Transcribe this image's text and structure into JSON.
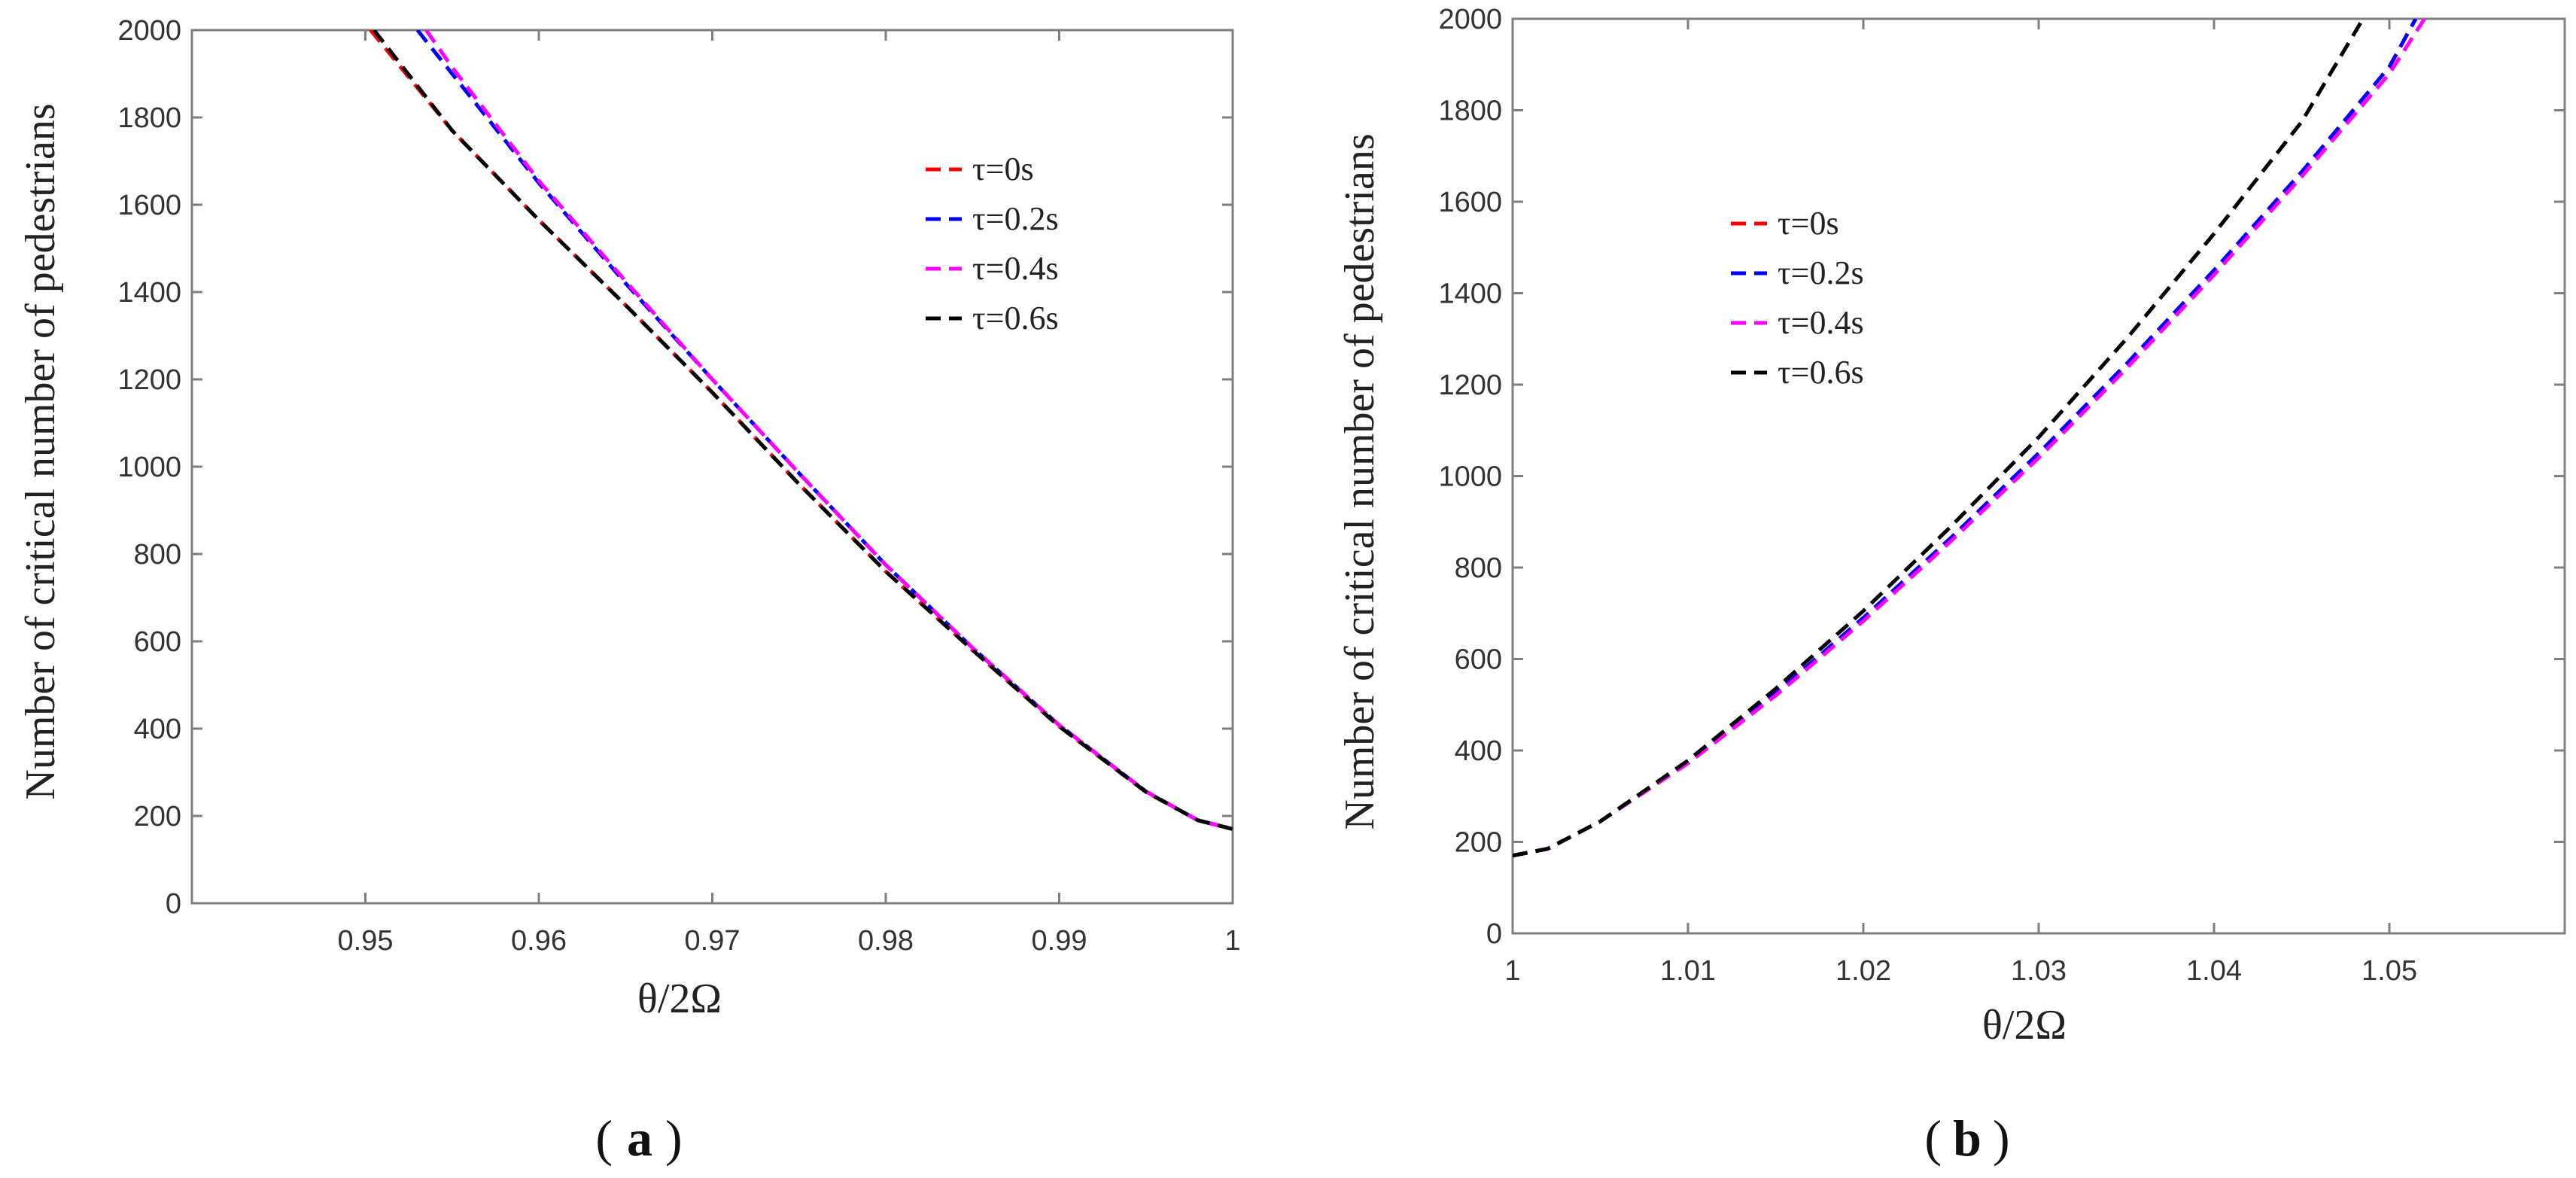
{
  "chart_data": [
    {
      "type": "line",
      "panel_label": "a",
      "xlabel": "θ/2Ω",
      "ylabel": "Number of critical number of pedestrians",
      "xlim": [
        0.94,
        1.0
      ],
      "ylim": [
        0,
        2000
      ],
      "xticks": [
        0.95,
        0.96,
        0.97,
        0.98,
        0.99,
        1
      ],
      "xtick_labels": [
        "0.95",
        "0.96",
        "0.97",
        "0.98",
        "0.99",
        "1"
      ],
      "yticks": [
        0,
        200,
        400,
        600,
        800,
        1000,
        1200,
        1400,
        1600,
        1800,
        2000
      ],
      "ytick_labels": [
        "0",
        "200",
        "400",
        "600",
        "800",
        "1000",
        "1200",
        "1400",
        "1600",
        "1800",
        "2000"
      ],
      "legend_position": "upper-right",
      "series": [
        {
          "name": "τ=0s",
          "color": "#ff0000",
          "x": [
            0.9503,
            0.955,
            0.96,
            0.965,
            0.97,
            0.975,
            0.98,
            0.985,
            0.99,
            0.995,
            0.998,
            1.0
          ],
          "y": [
            2000,
            1770,
            1565,
            1370,
            1170,
            960,
            760,
            580,
            405,
            255,
            190,
            170
          ]
        },
        {
          "name": "τ=0.2s",
          "color": "#0000ff",
          "x": [
            0.953,
            0.955,
            0.96,
            0.965,
            0.97,
            0.975,
            0.98,
            0.985,
            0.99,
            0.995,
            0.998,
            1.0
          ],
          "y": [
            2000,
            1900,
            1650,
            1420,
            1200,
            985,
            775,
            585,
            408,
            256,
            190,
            170
          ]
        },
        {
          "name": "τ=0.4s",
          "color": "#ff00ff",
          "x": [
            0.9535,
            0.955,
            0.96,
            0.965,
            0.97,
            0.975,
            0.98,
            0.985,
            0.99,
            0.995,
            0.998,
            1.0
          ],
          "y": [
            2000,
            1915,
            1655,
            1425,
            1200,
            985,
            775,
            585,
            408,
            256,
            190,
            170
          ]
        },
        {
          "name": "τ=0.6s",
          "color": "#000000",
          "x": [
            0.9505,
            0.955,
            0.96,
            0.965,
            0.97,
            0.975,
            0.98,
            0.985,
            0.99,
            0.995,
            0.998,
            1.0
          ],
          "y": [
            2000,
            1770,
            1565,
            1370,
            1170,
            960,
            760,
            580,
            405,
            255,
            190,
            170
          ]
        }
      ]
    },
    {
      "type": "line",
      "panel_label": "b",
      "xlabel": "θ/2Ω",
      "ylabel": "Number of critical number of pedestrians",
      "xlim": [
        1.0,
        1.06
      ],
      "ylim": [
        0,
        2000
      ],
      "xticks": [
        1,
        1.01,
        1.02,
        1.03,
        1.04,
        1.05
      ],
      "xtick_labels": [
        "1",
        "1.01",
        "1.02",
        "1.03",
        "1.04",
        "1.05"
      ],
      "yticks": [
        0,
        200,
        400,
        600,
        800,
        1000,
        1200,
        1400,
        1600,
        1800,
        2000
      ],
      "ytick_labels": [
        "0",
        "200",
        "400",
        "600",
        "800",
        "1000",
        "1200",
        "1400",
        "1600",
        "1800",
        "2000"
      ],
      "legend_position": "upper-left",
      "series": [
        {
          "name": "τ=0s",
          "color": "#ff0000",
          "x": [
            1.0,
            1.002,
            1.005,
            1.01,
            1.015,
            1.02,
            1.025,
            1.03,
            1.035,
            1.04,
            1.045,
            1.05,
            1.0515
          ],
          "y": [
            170,
            185,
            245,
            375,
            525,
            690,
            865,
            1050,
            1245,
            1450,
            1665,
            1895,
            2000
          ]
        },
        {
          "name": "τ=0.2s",
          "color": "#0000ff",
          "x": [
            1.0,
            1.002,
            1.005,
            1.01,
            1.015,
            1.02,
            1.025,
            1.03,
            1.035,
            1.04,
            1.045,
            1.05,
            1.0515
          ],
          "y": [
            170,
            185,
            245,
            375,
            525,
            690,
            865,
            1050,
            1245,
            1450,
            1665,
            1895,
            2000
          ]
        },
        {
          "name": "τ=0.4s",
          "color": "#ff00ff",
          "x": [
            1.0,
            1.002,
            1.005,
            1.01,
            1.015,
            1.02,
            1.025,
            1.03,
            1.035,
            1.04,
            1.045,
            1.05,
            1.052
          ],
          "y": [
            170,
            185,
            245,
            372,
            520,
            683,
            858,
            1040,
            1235,
            1440,
            1655,
            1880,
            2000
          ]
        },
        {
          "name": "τ=0.6s",
          "color": "#000000",
          "x": [
            1.0,
            1.002,
            1.005,
            1.01,
            1.015,
            1.02,
            1.025,
            1.03,
            1.035,
            1.04,
            1.045,
            1.0485
          ],
          "y": [
            170,
            185,
            245,
            378,
            535,
            705,
            890,
            1085,
            1300,
            1530,
            1775,
            2000
          ]
        }
      ]
    }
  ]
}
